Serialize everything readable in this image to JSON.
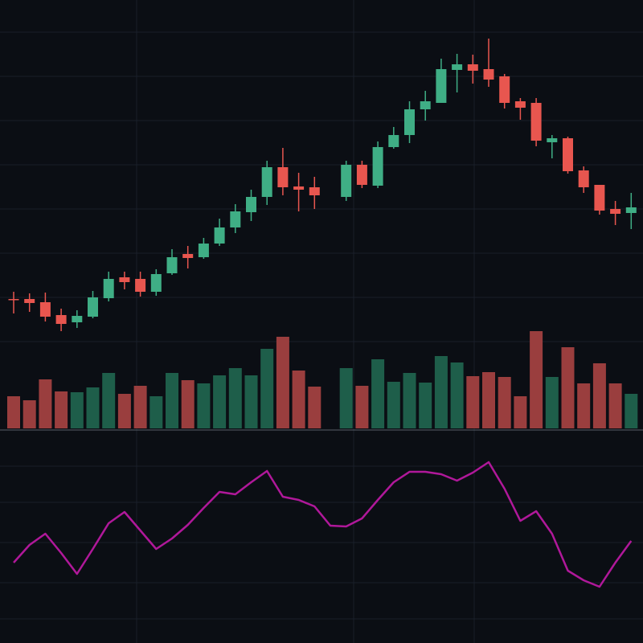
{
  "chart_data": [
    {
      "type": "candlestick",
      "up_color": "#3fae85",
      "down_color": "#e8564f",
      "ylim": [
        0,
        450
      ],
      "open": [
        78,
        78,
        74,
        58,
        49,
        56,
        79,
        105,
        103,
        87,
        110,
        134,
        130,
        147,
        167,
        186,
        205,
        242,
        218,
        217,
        null,
        205,
        245,
        219,
        267,
        282,
        314,
        322,
        363,
        370,
        364,
        355,
        324,
        322,
        273,
        278,
        238,
        220,
        190,
        185
      ],
      "high": [
        87,
        85,
        86,
        66,
        64,
        88,
        112,
        112,
        112,
        115,
        140,
        144,
        154,
        178,
        196,
        214,
        250,
        266,
        235,
        230,
        null,
        250,
        250,
        274,
        292,
        324,
        337,
        377,
        383,
        382,
        402,
        358,
        328,
        328,
        282,
        280,
        243,
        220,
        200,
        210
      ],
      "low": [
        60,
        62,
        50,
        38,
        42,
        54,
        75,
        90,
        81,
        82,
        108,
        116,
        128,
        144,
        160,
        175,
        195,
        207,
        187,
        190,
        null,
        200,
        216,
        216,
        265,
        272,
        300,
        322,
        335,
        346,
        342,
        315,
        301,
        268,
        253,
        234,
        210,
        183,
        170,
        165
      ],
      "close": [
        77,
        73,
        56,
        47,
        57,
        80,
        103,
        99,
        87,
        109,
        130,
        129,
        147,
        167,
        187,
        205,
        242,
        217,
        214,
        207,
        null,
        245,
        220,
        267,
        282,
        314,
        324,
        364,
        370,
        362,
        351,
        322,
        316,
        275,
        278,
        237,
        217,
        188,
        184,
        192
      ]
    },
    {
      "type": "bar",
      "ylim": [
        0,
        130
      ],
      "values": [
        40,
        35,
        61,
        46,
        45,
        51,
        69,
        43,
        53,
        40,
        69,
        60,
        56,
        66,
        75,
        66,
        99,
        114,
        72,
        52,
        null,
        75,
        53,
        86,
        58,
        69,
        57,
        90,
        82,
        65,
        70,
        64,
        40,
        121,
        64,
        101,
        56,
        81,
        56,
        43
      ],
      "colors": [
        "#9a3e3e",
        "#9a3e3e",
        "#9a3e3e",
        "#9a3e3e",
        "#1e5e4a",
        "#1e5e4a",
        "#1e5e4a",
        "#9a3e3e",
        "#9a3e3e",
        "#1e5e4a",
        "#1e5e4a",
        "#9a3e3e",
        "#1e5e4a",
        "#1e5e4a",
        "#1e5e4a",
        "#1e5e4a",
        "#1e5e4a",
        "#9a3e3e",
        "#9a3e3e",
        "#9a3e3e",
        null,
        "#1e5e4a",
        "#9a3e3e",
        "#1e5e4a",
        "#1e5e4a",
        "#1e5e4a",
        "#1e5e4a",
        "#1e5e4a",
        "#1e5e4a",
        "#9a3e3e",
        "#9a3e3e",
        "#9a3e3e",
        "#9a3e3e",
        "#9a3e3e",
        "#1e5e4a",
        "#9a3e3e",
        "#9a3e3e",
        "#9a3e3e",
        "#9a3e3e",
        "#1e5e4a"
      ]
    },
    {
      "type": "line",
      "color": "#b0189a",
      "ylim": [
        0,
        250
      ],
      "values": [
        90,
        112,
        126,
        102,
        76,
        107,
        139,
        153,
        130,
        107,
        120,
        137,
        158,
        178,
        175,
        190,
        204,
        172,
        168,
        160,
        136,
        135,
        145,
        168,
        190,
        203,
        203,
        200,
        192,
        202,
        215,
        182,
        142,
        154,
        126,
        80,
        68,
        60,
        90,
        117
      ]
    }
  ]
}
